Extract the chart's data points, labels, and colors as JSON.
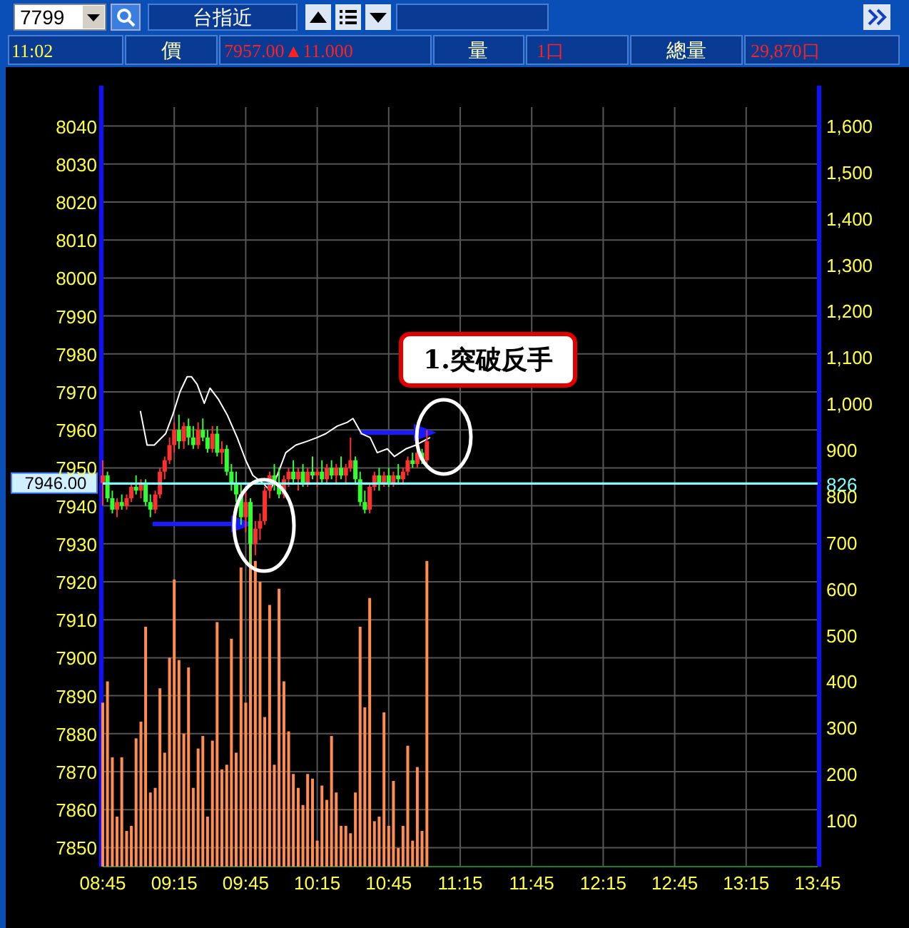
{
  "chart_data": {
    "type": "candlestick",
    "x": [
      8.75,
      8.783,
      8.817,
      8.85,
      8.883,
      8.917,
      8.95,
      8.983,
      9.017,
      9.05,
      9.083,
      9.117,
      9.15,
      9.183,
      9.217,
      9.25,
      9.283,
      9.317,
      9.35,
      9.383,
      9.417,
      9.45,
      9.483,
      9.517,
      9.55,
      9.583,
      9.617,
      9.65,
      9.683,
      9.717,
      9.75,
      9.783,
      9.817,
      9.85,
      9.883,
      9.917,
      9.95,
      9.983,
      10.017,
      10.05,
      10.083,
      10.117,
      10.15,
      10.183,
      10.217,
      10.25,
      10.283,
      10.317,
      10.35,
      10.383,
      10.417,
      10.45,
      10.483,
      10.517,
      10.55,
      10.583,
      10.617,
      10.65,
      10.683,
      10.717,
      10.75,
      10.783,
      10.817,
      10.85,
      10.883,
      10.917,
      10.95,
      10.983,
      11.017
    ],
    "series": [
      {
        "type": "bar",
        "axis": "y2",
        "color": "#ff8c50",
        "values": [
          354,
          400,
          236,
          108,
          236,
          77,
          88,
          277,
          313,
          518,
          160,
          170,
          385,
          246,
          451,
          620,
          446,
          287,
          430,
          170,
          255,
          282,
          108,
          272,
          528,
          210,
          220,
          492,
          246,
          646,
          354,
          700,
          660,
          615,
          323,
          565,
          220,
          600,
          400,
          292,
          200,
          170,
          133,
          200,
          190,
          56,
          175,
          144,
          282,
          160,
          88,
          88,
          72,
          160,
          518,
          344,
          580,
          98,
          108,
          333,
          88,
          185,
          40,
          88,
          261,
          56,
          215,
          77,
          660
        ]
      },
      {
        "type": "line",
        "color": "#ffffff",
        "x": [
          9.013,
          9.06,
          9.11,
          9.19,
          9.24,
          9.29,
          9.34,
          9.37,
          9.41,
          9.46,
          9.5,
          9.56,
          9.62,
          9.69,
          9.75,
          9.8,
          9.87,
          9.92,
          9.97,
          10.03,
          10.1,
          10.18,
          10.25,
          10.31,
          10.39,
          10.46,
          10.5,
          10.56,
          10.62,
          10.67,
          10.74,
          10.79,
          10.87,
          10.94,
          11.04
        ],
        "values": [
          7965,
          7956,
          7956,
          7959,
          7964,
          7970,
          7974,
          7974,
          7972,
          7967,
          7971,
          7968,
          7964,
          7958,
          7952,
          7948,
          7946,
          7944,
          7948,
          7954,
          7956,
          7957,
          7958,
          7959,
          7961,
          7962,
          7963,
          7959,
          7958,
          7954,
          7955,
          7953,
          7955,
          7956,
          7958
        ]
      },
      {
        "type": "candlestick",
        "ohlc": [
          [
            7946,
            7952,
            7940,
            7948
          ],
          [
            7948,
            7949,
            7941,
            7942
          ],
          [
            7942,
            7944,
            7938,
            7939
          ],
          [
            7939,
            7942,
            7937,
            7941
          ],
          [
            7941,
            7943,
            7939,
            7940
          ],
          [
            7940,
            7943,
            7939,
            7942
          ],
          [
            7942,
            7946,
            7941,
            7945
          ],
          [
            7945,
            7948,
            7943,
            7944
          ],
          [
            7944,
            7947,
            7942,
            7946
          ],
          [
            7946,
            7947,
            7940,
            7941
          ],
          [
            7941,
            7943,
            7937,
            7939
          ],
          [
            7939,
            7944,
            7938,
            7943
          ],
          [
            7943,
            7950,
            7942,
            7949
          ],
          [
            7949,
            7953,
            7947,
            7952
          ],
          [
            7952,
            7958,
            7951,
            7956
          ],
          [
            7956,
            7962,
            7954,
            7960
          ],
          [
            7960,
            7964,
            7955,
            7957
          ],
          [
            7957,
            7962,
            7955,
            7961
          ],
          [
            7961,
            7963,
            7956,
            7958
          ],
          [
            7958,
            7961,
            7955,
            7956
          ],
          [
            7956,
            7962,
            7955,
            7960
          ],
          [
            7960,
            7963,
            7957,
            7958
          ],
          [
            7958,
            7960,
            7954,
            7955
          ],
          [
            7955,
            7961,
            7954,
            7959
          ],
          [
            7959,
            7961,
            7953,
            7954
          ],
          [
            7954,
            7957,
            7951,
            7955
          ],
          [
            7955,
            7956,
            7948,
            7949
          ],
          [
            7949,
            7951,
            7944,
            7946
          ],
          [
            7946,
            7949,
            7941,
            7943
          ],
          [
            7943,
            7946,
            7935,
            7937
          ],
          [
            7937,
            7945,
            7933,
            7941
          ],
          [
            7941,
            7942,
            7924,
            7930
          ],
          [
            7930,
            7936,
            7927,
            7934
          ],
          [
            7934,
            7938,
            7931,
            7936
          ],
          [
            7936,
            7945,
            7935,
            7944
          ],
          [
            7944,
            7949,
            7942,
            7948
          ],
          [
            7948,
            7951,
            7944,
            7946
          ],
          [
            7946,
            7950,
            7942,
            7943
          ],
          [
            7943,
            7948,
            7942,
            7947
          ],
          [
            7947,
            7950,
            7945,
            7949
          ],
          [
            7949,
            7952,
            7946,
            7947
          ],
          [
            7947,
            7950,
            7944,
            7949
          ],
          [
            7949,
            7951,
            7945,
            7946
          ],
          [
            7946,
            7950,
            7945,
            7949
          ],
          [
            7949,
            7953,
            7947,
            7948
          ],
          [
            7948,
            7950,
            7945,
            7949
          ],
          [
            7949,
            7952,
            7946,
            7947
          ],
          [
            7947,
            7951,
            7946,
            7950
          ],
          [
            7950,
            7952,
            7947,
            7948
          ],
          [
            7948,
            7951,
            7946,
            7950
          ],
          [
            7950,
            7953,
            7947,
            7948
          ],
          [
            7948,
            7951,
            7946,
            7950
          ],
          [
            7950,
            7958,
            7949,
            7952
          ],
          [
            7952,
            7953,
            7946,
            7947
          ],
          [
            7947,
            7949,
            7940,
            7941
          ],
          [
            7941,
            7944,
            7938,
            7939
          ],
          [
            7939,
            7946,
            7938,
            7945
          ],
          [
            7945,
            7949,
            7944,
            7948
          ],
          [
            7948,
            7950,
            7944,
            7946
          ],
          [
            7946,
            7949,
            7945,
            7948
          ],
          [
            7948,
            7950,
            7945,
            7946
          ],
          [
            7946,
            7949,
            7945,
            7948
          ],
          [
            7948,
            7951,
            7946,
            7947
          ],
          [
            7947,
            7950,
            7946,
            7949
          ],
          [
            7949,
            7953,
            7948,
            7952
          ],
          [
            7952,
            7954,
            7950,
            7951
          ],
          [
            7951,
            7955,
            7950,
            7954
          ],
          [
            7954,
            7955,
            7951,
            7952
          ],
          [
            7952,
            7960,
            7951,
            7957
          ]
        ],
        "colors": [
          "#ff3030",
          "#30ff30",
          "#30ff30",
          "#ff3030",
          "#30ff30",
          "#ff3030",
          "#ff3030",
          "#30ff30",
          "#ff3030",
          "#30ff30",
          "#30ff30",
          "#ff3030",
          "#ff3030",
          "#ff3030",
          "#ff3030",
          "#ff3030",
          "#30ff30",
          "#ff3030",
          "#30ff30",
          "#30ff30",
          "#ff3030",
          "#30ff30",
          "#30ff30",
          "#ff3030",
          "#30ff30",
          "#ff3030",
          "#30ff30",
          "#30ff30",
          "#30ff30",
          "#30ff30",
          "#ff3030",
          "#30ff30",
          "#ff3030",
          "#ff3030",
          "#ff3030",
          "#ff3030",
          "#30ff30",
          "#30ff30",
          "#ff3030",
          "#ff3030",
          "#30ff30",
          "#ff3030",
          "#30ff30",
          "#ff3030",
          "#30ff30",
          "#ff3030",
          "#30ff30",
          "#ff3030",
          "#30ff30",
          "#ff3030",
          "#30ff30",
          "#ff3030",
          "#ff3030",
          "#30ff30",
          "#30ff30",
          "#30ff30",
          "#ff3030",
          "#ff3030",
          "#30ff30",
          "#ff3030",
          "#30ff30",
          "#ff3030",
          "#30ff30",
          "#ff3030",
          "#ff3030",
          "#30ff30",
          "#ff3030",
          "#30ff30",
          "#ff3030"
        ]
      }
    ],
    "xlim": [
      8.75,
      13.75
    ],
    "xticks": [
      {
        "value": 8.75,
        "label": "08:45"
      },
      {
        "value": 9.25,
        "label": "09:15"
      },
      {
        "value": 9.75,
        "label": "09:45"
      },
      {
        "value": 10.25,
        "label": "10:15"
      },
      {
        "value": 10.75,
        "label": "10:45"
      },
      {
        "value": 11.25,
        "label": "11:15"
      },
      {
        "value": 11.75,
        "label": "11:45"
      },
      {
        "value": 12.25,
        "label": "12:15"
      },
      {
        "value": 12.75,
        "label": "12:45"
      },
      {
        "value": 13.25,
        "label": "13:15"
      },
      {
        "value": 13.75,
        "label": "13:45"
      }
    ],
    "ylim": [
      7845,
      8045
    ],
    "yticks": [
      7850,
      7860,
      7870,
      7880,
      7890,
      7900,
      7910,
      7920,
      7930,
      7940,
      7950,
      7960,
      7970,
      7980,
      7990,
      8000,
      8010,
      8020,
      8030,
      8040
    ],
    "y2lim": [
      0,
      1640
    ],
    "y2ticks": [
      100,
      200,
      300,
      400,
      500,
      600,
      700,
      800,
      900,
      {
        "value": 1000,
        "label": "1,000"
      },
      {
        "value": 1100,
        "label": "1,100"
      },
      {
        "value": 1200,
        "label": "1,200"
      },
      {
        "value": 1300,
        "label": "1,300"
      },
      {
        "value": 1400,
        "label": "1,400"
      },
      {
        "value": 1500,
        "label": "1,500"
      },
      {
        "value": 1600,
        "label": "1,600"
      }
    ],
    "grid": true,
    "ref_lines": [
      {
        "axis": "y",
        "value": 7946,
        "label": "7946.00",
        "color": "#80ffff"
      },
      {
        "axis": "y2",
        "value": 826,
        "label": "826",
        "color": "#80ffff"
      }
    ],
    "annotations": [
      "7799",
      "台指近",
      "11:02",
      "價",
      "7957.00▲11.000",
      "量",
      "1口",
      "總量",
      "29,870口",
      "1.突破反手"
    ]
  }
}
